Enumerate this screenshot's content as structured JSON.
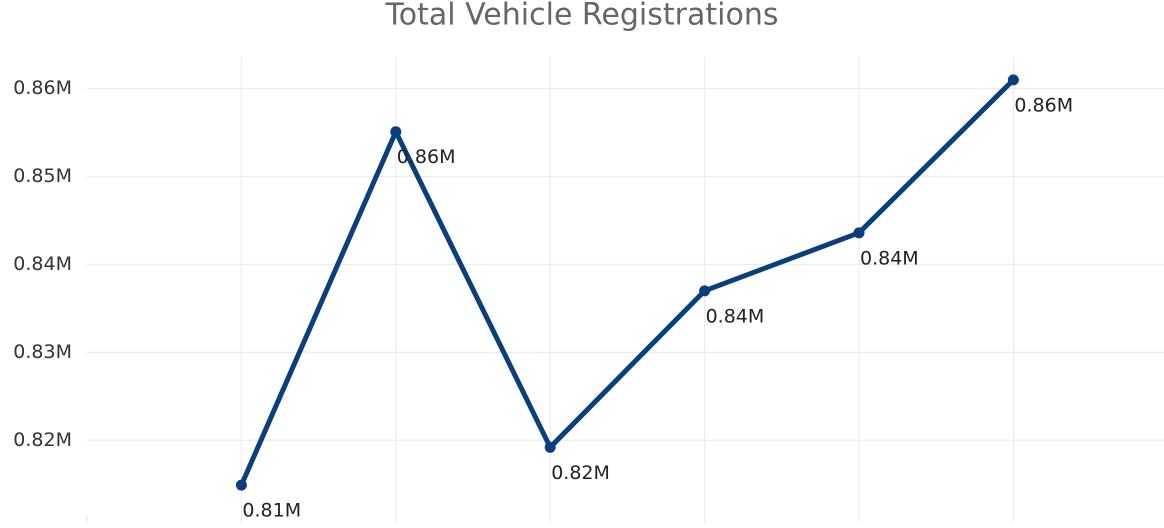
{
  "chart_data": {
    "type": "line",
    "title": "Total Vehicle Registrations",
    "categories": [
      null,
      null,
      null,
      null,
      null,
      null
    ],
    "series": [
      {
        "name": null,
        "color": "#0a3e7c",
        "values": [
          814900,
          855100,
          819200,
          837000,
          843600,
          861000
        ],
        "value_labels": [
          "0.81M",
          "0.86M",
          "0.82M",
          "0.84M",
          "0.84M",
          "0.86M"
        ]
      }
    ],
    "ylim": [
      811500,
      863600
    ],
    "yticks": [
      {
        "value": 820000,
        "label": "0.82M"
      },
      {
        "value": 830000,
        "label": "0.83M"
      },
      {
        "value": 840000,
        "label": "0.84M"
      },
      {
        "value": 850000,
        "label": "0.85M"
      },
      {
        "value": 860000,
        "label": "0.86M"
      }
    ],
    "grid": true
  }
}
